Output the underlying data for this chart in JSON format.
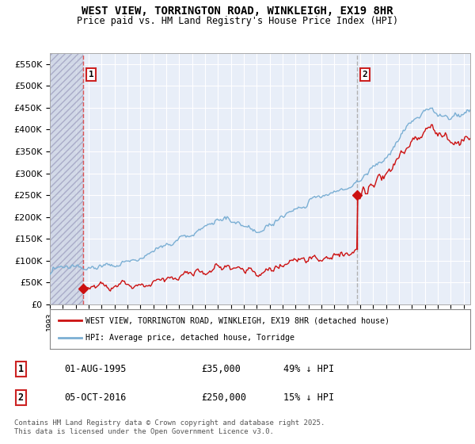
{
  "title_line1": "WEST VIEW, TORRINGTON ROAD, WINKLEIGH, EX19 8HR",
  "title_line2": "Price paid vs. HM Land Registry's House Price Index (HPI)",
  "ylim": [
    0,
    575000
  ],
  "yticks": [
    0,
    50000,
    100000,
    150000,
    200000,
    250000,
    300000,
    350000,
    400000,
    450000,
    500000,
    550000
  ],
  "ytick_labels": [
    "£0",
    "£50K",
    "£100K",
    "£150K",
    "£200K",
    "£250K",
    "£300K",
    "£350K",
    "£400K",
    "£450K",
    "£500K",
    "£550K"
  ],
  "hpi_color": "#7bafd4",
  "property_color": "#cc1111",
  "marker_color": "#cc1111",
  "sale1_dashed_color": "#dd4444",
  "sale2_dashed_color": "#aaaaaa",
  "background_color": "#e8eef8",
  "grid_color": "#ffffff",
  "sale1_year": 1995.58,
  "sale1_price": 35000,
  "sale1_label": "1",
  "sale2_year": 2016.75,
  "sale2_price": 250000,
  "sale2_label": "2",
  "legend_entry1": "WEST VIEW, TORRINGTON ROAD, WINKLEIGH, EX19 8HR (detached house)",
  "legend_entry2": "HPI: Average price, detached house, Torridge",
  "annotation1_date": "01-AUG-1995",
  "annotation1_price": "£35,000",
  "annotation1_hpi": "49% ↓ HPI",
  "annotation2_date": "05-OCT-2016",
  "annotation2_price": "£250,000",
  "annotation2_hpi": "15% ↓ HPI",
  "footnote": "Contains HM Land Registry data © Crown copyright and database right 2025.\nThis data is licensed under the Open Government Licence v3.0.",
  "xmin": 1993,
  "xmax": 2025.5,
  "hatch_xmin": 1993,
  "hatch_xmax": 1995.58
}
